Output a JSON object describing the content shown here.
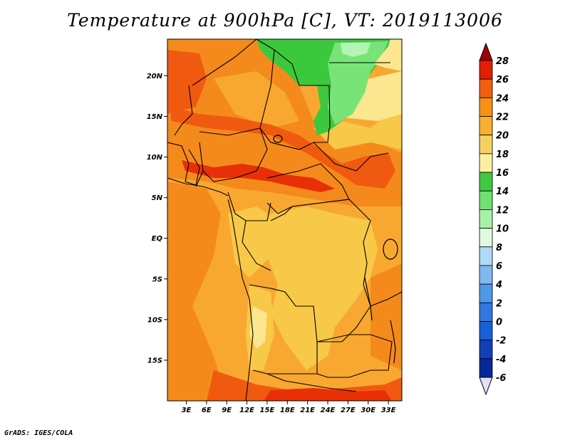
{
  "title": "Temperature at 900hPa [C], VT: 2019113006",
  "credit": "GrADS: IGES/COLA",
  "lat_axis": {
    "ticks": [
      {
        "value": 20,
        "label": "20N"
      },
      {
        "value": 15,
        "label": "15N"
      },
      {
        "value": 10,
        "label": "10N"
      },
      {
        "value": 5,
        "label": "5N"
      },
      {
        "value": 0,
        "label": "EQ"
      },
      {
        "value": -5,
        "label": "5S"
      },
      {
        "value": -10,
        "label": "10S"
      },
      {
        "value": -15,
        "label": "15S"
      }
    ],
    "range": [
      -20,
      24.5
    ]
  },
  "lon_axis": {
    "ticks": [
      {
        "value": 3,
        "label": "3E"
      },
      {
        "value": 6,
        "label": "6E"
      },
      {
        "value": 9,
        "label": "9E"
      },
      {
        "value": 12,
        "label": "12E"
      },
      {
        "value": 15,
        "label": "15E"
      },
      {
        "value": 18,
        "label": "18E"
      },
      {
        "value": 21,
        "label": "21E"
      },
      {
        "value": 24,
        "label": "24E"
      },
      {
        "value": 27,
        "label": "27E"
      },
      {
        "value": 30,
        "label": "30E"
      },
      {
        "value": 33,
        "label": "33E"
      }
    ],
    "range": [
      0.2,
      35
    ]
  },
  "colorbar": {
    "levels": [
      {
        "label": "28",
        "color": "#a00000"
      },
      {
        "label": "26",
        "color": "#e02000"
      },
      {
        "label": "24",
        "color": "#f06010"
      },
      {
        "label": "22",
        "color": "#f89018"
      },
      {
        "label": "20",
        "color": "#f8b030"
      },
      {
        "label": "18",
        "color": "#f8d060"
      },
      {
        "label": "16",
        "color": "#fcf0a0"
      },
      {
        "label": "14",
        "color": "#40c840"
      },
      {
        "label": "12",
        "color": "#70e070"
      },
      {
        "label": "10",
        "color": "#a8f0a8"
      },
      {
        "label": "8",
        "color": "#e0fae0"
      },
      {
        "label": "6",
        "color": "#b0d8f8"
      },
      {
        "label": "4",
        "color": "#80b8f0"
      },
      {
        "label": "2",
        "color": "#5098e8"
      },
      {
        "label": "0",
        "color": "#3078e0"
      },
      {
        "label": "-2",
        "color": "#1860d8"
      },
      {
        "label": "-4",
        "color": "#1040b8"
      },
      {
        "label": "-6",
        "color": "#082898"
      }
    ],
    "under_color": "#000070",
    "over_color": "#e0e0f8"
  },
  "map_colors": {
    "c28": "#e83008",
    "c26": "#f05a10",
    "c24": "#f58a1c",
    "c22": "#f8a830",
    "c20": "#f8c848",
    "c18": "#fce690",
    "c14": "#3cc83c",
    "c12": "#78e478",
    "c10": "#b4f4b4"
  }
}
